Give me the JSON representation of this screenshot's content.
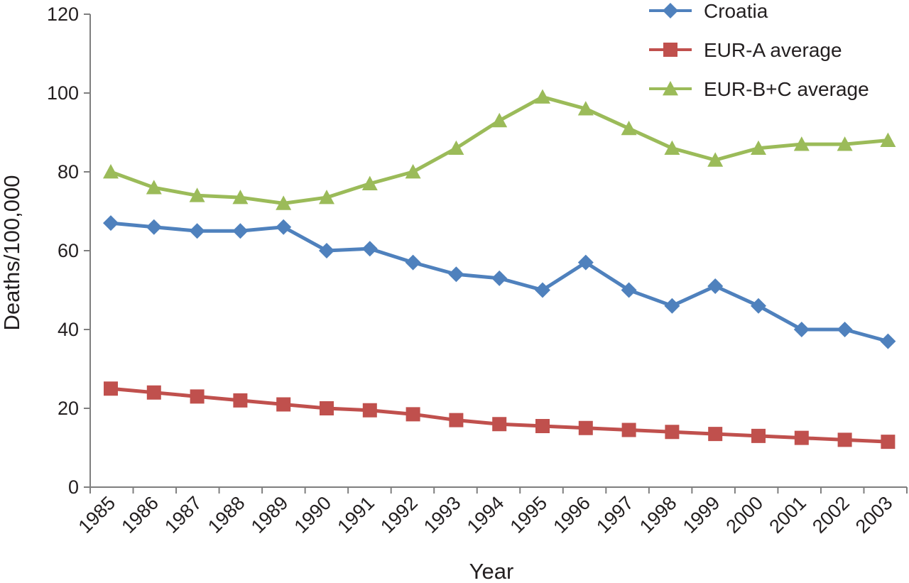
{
  "chart_data": {
    "type": "line",
    "title": "",
    "xlabel": "Year",
    "ylabel": "Deaths/100,000",
    "ylim": [
      0,
      120
    ],
    "yticks": [
      0,
      20,
      40,
      60,
      80,
      100,
      120
    ],
    "categories": [
      "1985",
      "1986",
      "1987",
      "1988",
      "1989",
      "1990",
      "1991",
      "1992",
      "1993",
      "1994",
      "1995",
      "1996",
      "1997",
      "1998",
      "1999",
      "2000",
      "2001",
      "2002",
      "2003"
    ],
    "legend_position": "top-right",
    "grid": false,
    "series": [
      {
        "name": "Croatia",
        "color": "#4f81bd",
        "marker": "diamond",
        "values": [
          67,
          66,
          65,
          65,
          66,
          60,
          60.5,
          57,
          54,
          53,
          50,
          57,
          50,
          46,
          51,
          46,
          40,
          40,
          37
        ]
      },
      {
        "name": "EUR-A average",
        "color": "#c0504d",
        "marker": "square",
        "values": [
          25,
          24,
          23,
          22,
          21,
          20,
          19.5,
          18.5,
          17,
          16,
          15.5,
          15,
          14.5,
          14,
          13.5,
          13,
          12.5,
          12,
          11.5
        ]
      },
      {
        "name": "EUR-B+C average",
        "color": "#9bbb59",
        "marker": "triangle",
        "values": [
          80,
          76,
          74,
          73.5,
          72,
          73.5,
          77,
          80,
          86,
          93,
          99,
          96,
          91,
          86,
          83,
          86,
          87,
          87,
          88
        ]
      }
    ]
  }
}
